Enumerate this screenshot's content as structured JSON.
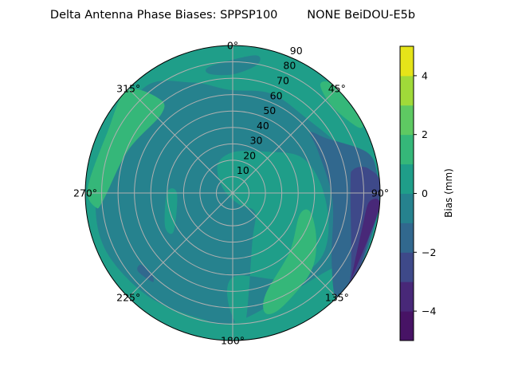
{
  "chart_data": {
    "type": "polar-contour",
    "title": "Delta Antenna Phase Biases: SPPSP100        NONE BeiDOU-E5b",
    "angular_axis": {
      "direction": "clockwise",
      "zero_location": "top",
      "ticks": [
        0,
        45,
        90,
        135,
        180,
        225,
        270,
        315
      ],
      "tick_labels": [
        "0°",
        "45°",
        "90°",
        "135°",
        "180°",
        "225°",
        "270°",
        "315°"
      ]
    },
    "radial_axis": {
      "range": [
        0,
        90
      ],
      "ticks": [
        10,
        20,
        30,
        40,
        50,
        60,
        70,
        80,
        90
      ],
      "tick_labels": [
        "10",
        "20",
        "30",
        "40",
        "50",
        "60",
        "70",
        "80",
        "90"
      ]
    },
    "grid": true,
    "colorbar": {
      "label": "Bias (mm)",
      "range": [
        -5,
        5
      ],
      "levels": [
        -5,
        -4,
        -3,
        -2,
        -1,
        0,
        1,
        2,
        3,
        4,
        5
      ],
      "colors": [
        "#471365",
        "#482878",
        "#3e4989",
        "#31688e",
        "#26828e",
        "#1f9e89",
        "#35b779",
        "#5ec962",
        "#a0da39",
        "#e5e419"
      ],
      "ticks": [
        -4,
        -2,
        0,
        2,
        4
      ],
      "tick_labels": [
        "−4",
        "−2",
        "0",
        "2",
        "4"
      ]
    },
    "background_level": [
      0,
      1
    ],
    "regions_note_units": "points are [azimuth_deg, zenith_deg]",
    "regions": [
      {
        "level": [
          -1,
          0
        ],
        "points": [
          [
            319,
            84
          ],
          [
            339.5,
            72
          ],
          [
            358,
            63
          ],
          [
            21,
            65
          ],
          [
            44,
            64
          ],
          [
            70,
            73
          ],
          [
            92,
            85
          ],
          [
            115,
            85
          ],
          [
            131,
            74
          ],
          [
            177,
            78
          ],
          [
            195,
            79
          ],
          [
            220,
            81.5
          ],
          [
            245,
            85
          ],
          [
            265,
            84
          ],
          [
            283,
            79
          ]
        ]
      },
      {
        "level": [
          -1,
          0
        ],
        "points": [
          [
            350,
            78.5
          ],
          [
            9,
            85
          ],
          [
            11,
            80
          ],
          [
            0.5,
            72.5
          ],
          [
            349,
            74
          ]
        ]
      },
      {
        "level": [
          0,
          1
        ],
        "points": [
          [
            332,
            19.6
          ],
          [
            1.5,
            25
          ],
          [
            38,
            32
          ],
          [
            62,
            47
          ],
          [
            84,
            54
          ],
          [
            109,
            62
          ],
          [
            128,
            67
          ],
          [
            148,
            62
          ],
          [
            179,
            51
          ],
          [
            182,
            68.5
          ],
          [
            175,
            82
          ],
          [
            158,
            32
          ],
          [
            131,
            18
          ],
          [
            151,
            8
          ],
          [
            295,
            6.5
          ]
        ]
      },
      {
        "level": [
          0,
          1
        ],
        "points": [
          [
            270.7,
            40
          ],
          [
            269.5,
            34
          ],
          [
            237,
            43
          ],
          [
            244,
            46
          ]
        ]
      },
      {
        "level": [
          1,
          2
        ],
        "points": [
          [
            314,
            90
          ],
          [
            322,
            73
          ],
          [
            318,
            65
          ],
          [
            292,
            69
          ],
          [
            267,
            79
          ],
          [
            264,
            84
          ],
          [
            272,
            88.5
          ],
          [
            296,
            85
          ]
        ]
      },
      {
        "level": [
          1,
          2
        ],
        "points": [
          [
            39,
            85
          ],
          [
            43,
            90
          ],
          [
            60,
            90
          ],
          [
            62.5,
            86.6
          ],
          [
            49,
            80.5
          ]
        ]
      },
      {
        "level": [
          1,
          2
        ],
        "points": [
          [
            108,
            43
          ],
          [
            104,
            49
          ],
          [
            120,
            59
          ],
          [
            136,
            68
          ],
          [
            157,
            76
          ],
          [
            164.7,
            76
          ],
          [
            162,
            65
          ],
          [
            136,
            50
          ]
        ]
      },
      {
        "level": [
          -2,
          -1
        ],
        "points": [
          [
            52,
            60
          ],
          [
            60,
            66.5
          ],
          [
            73,
            85.5
          ],
          [
            82,
            89
          ],
          [
            94.5,
            90
          ],
          [
            119,
            90
          ],
          [
            132,
            90
          ],
          [
            135,
            88
          ],
          [
            123,
            72
          ],
          [
            93.5,
            61
          ],
          [
            64,
            58
          ]
        ]
      },
      {
        "level": [
          -2,
          -1
        ],
        "points": [
          [
            232,
            71
          ],
          [
            225,
            70
          ],
          [
            222,
            73
          ],
          [
            230.5,
            75
          ]
        ]
      },
      {
        "level": [
          -3,
          -2
        ],
        "points": [
          [
            79,
            75
          ],
          [
            80,
            84.5
          ],
          [
            89,
            90
          ],
          [
            121,
            90
          ],
          [
            132,
            90
          ],
          [
            124,
            87
          ],
          [
            87,
            72
          ]
        ]
      },
      {
        "level": [
          -4,
          -3
        ],
        "points": [
          [
            93.7,
            83.5
          ],
          [
            96,
            90
          ],
          [
            127,
            90
          ],
          [
            127,
            90
          ],
          [
            106.5,
            82
          ]
        ]
      }
    ]
  }
}
